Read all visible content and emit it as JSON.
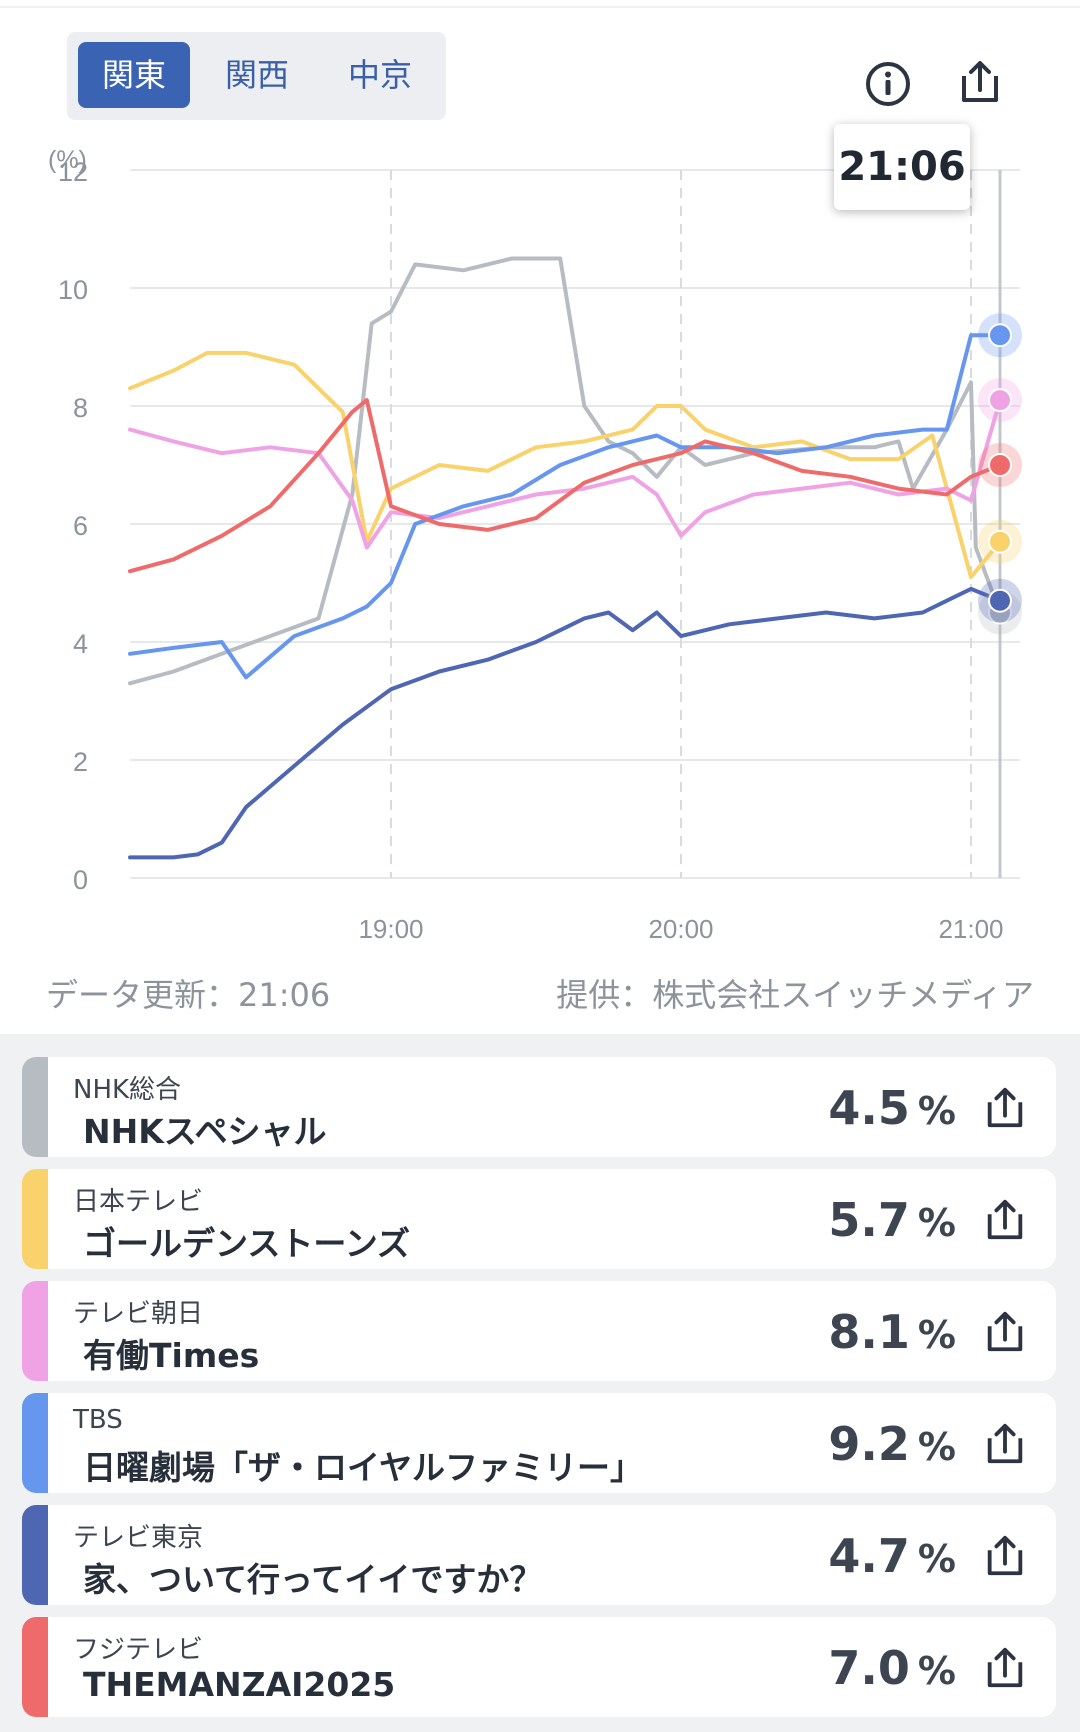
{
  "tabs": [
    {
      "label": "関東",
      "active": true
    },
    {
      "label": "関西",
      "active": false
    },
    {
      "label": "中京",
      "active": false
    }
  ],
  "icons": {
    "info": "info-icon",
    "share": "share-icon"
  },
  "tooltip": {
    "time": "21:06"
  },
  "chart_data": {
    "type": "line",
    "ylabel": "(%)",
    "ylim": [
      0,
      12
    ],
    "yticks": [
      "0",
      "2",
      "4",
      "6",
      "8",
      "10",
      "12"
    ],
    "xticks": [
      "19:00",
      "20:00",
      "21:00"
    ],
    "xlim": [
      "18:06",
      "21:06"
    ],
    "grid": true,
    "cursor_time": "21:06",
    "series": [
      {
        "name": "NHK総合",
        "color": "#b7bcc3",
        "points": [
          [
            "18:06",
            3.3
          ],
          [
            "18:15",
            3.5
          ],
          [
            "18:25",
            3.8
          ],
          [
            "18:35",
            4.1
          ],
          [
            "18:45",
            4.4
          ],
          [
            "18:52",
            6.5
          ],
          [
            "18:56",
            9.4
          ],
          [
            "19:00",
            9.6
          ],
          [
            "19:05",
            10.4
          ],
          [
            "19:15",
            10.3
          ],
          [
            "19:25",
            10.5
          ],
          [
            "19:35",
            10.5
          ],
          [
            "19:40",
            8.0
          ],
          [
            "19:45",
            7.4
          ],
          [
            "19:50",
            7.2
          ],
          [
            "19:55",
            6.8
          ],
          [
            "20:00",
            7.3
          ],
          [
            "20:05",
            7.0
          ],
          [
            "20:15",
            7.2
          ],
          [
            "20:30",
            7.3
          ],
          [
            "20:40",
            7.3
          ],
          [
            "20:45",
            7.4
          ],
          [
            "20:48",
            6.6
          ],
          [
            "20:55",
            7.6
          ],
          [
            "21:00",
            8.4
          ],
          [
            "21:01",
            5.6
          ],
          [
            "21:06",
            4.5
          ]
        ]
      },
      {
        "name": "日本テレビ",
        "color": "#f9d26c",
        "points": [
          [
            "18:06",
            8.3
          ],
          [
            "18:15",
            8.6
          ],
          [
            "18:22",
            8.9
          ],
          [
            "18:30",
            8.9
          ],
          [
            "18:40",
            8.7
          ],
          [
            "18:50",
            7.9
          ],
          [
            "18:55",
            5.7
          ],
          [
            "19:00",
            6.6
          ],
          [
            "19:10",
            7.0
          ],
          [
            "19:20",
            6.9
          ],
          [
            "19:30",
            7.3
          ],
          [
            "19:40",
            7.4
          ],
          [
            "19:50",
            7.6
          ],
          [
            "19:55",
            8.0
          ],
          [
            "20:00",
            8.0
          ],
          [
            "20:05",
            7.6
          ],
          [
            "20:15",
            7.3
          ],
          [
            "20:25",
            7.4
          ],
          [
            "20:35",
            7.1
          ],
          [
            "20:45",
            7.1
          ],
          [
            "20:52",
            7.5
          ],
          [
            "20:56",
            6.3
          ],
          [
            "21:00",
            5.1
          ],
          [
            "21:06",
            5.7
          ]
        ]
      },
      {
        "name": "テレビ朝日",
        "color": "#f0a3e4",
        "points": [
          [
            "18:06",
            7.6
          ],
          [
            "18:15",
            7.4
          ],
          [
            "18:25",
            7.2
          ],
          [
            "18:35",
            7.3
          ],
          [
            "18:45",
            7.2
          ],
          [
            "18:52",
            6.4
          ],
          [
            "18:55",
            5.6
          ],
          [
            "19:00",
            6.2
          ],
          [
            "19:10",
            6.1
          ],
          [
            "19:20",
            6.3
          ],
          [
            "19:30",
            6.5
          ],
          [
            "19:40",
            6.6
          ],
          [
            "19:50",
            6.8
          ],
          [
            "19:55",
            6.5
          ],
          [
            "20:00",
            5.8
          ],
          [
            "20:05",
            6.2
          ],
          [
            "20:15",
            6.5
          ],
          [
            "20:25",
            6.6
          ],
          [
            "20:35",
            6.7
          ],
          [
            "20:45",
            6.5
          ],
          [
            "20:55",
            6.6
          ],
          [
            "21:00",
            6.4
          ],
          [
            "21:06",
            8.1
          ]
        ]
      },
      {
        "name": "TBS",
        "color": "#6796ef",
        "points": [
          [
            "18:06",
            3.8
          ],
          [
            "18:15",
            3.9
          ],
          [
            "18:25",
            4.0
          ],
          [
            "18:30",
            3.4
          ],
          [
            "18:40",
            4.1
          ],
          [
            "18:50",
            4.4
          ],
          [
            "18:55",
            4.6
          ],
          [
            "19:00",
            5.0
          ],
          [
            "19:05",
            6.0
          ],
          [
            "19:15",
            6.3
          ],
          [
            "19:25",
            6.5
          ],
          [
            "19:35",
            7.0
          ],
          [
            "19:45",
            7.3
          ],
          [
            "19:55",
            7.5
          ],
          [
            "20:00",
            7.3
          ],
          [
            "20:10",
            7.3
          ],
          [
            "20:20",
            7.2
          ],
          [
            "20:30",
            7.3
          ],
          [
            "20:40",
            7.5
          ],
          [
            "20:50",
            7.6
          ],
          [
            "20:55",
            7.6
          ],
          [
            "21:00",
            9.2
          ],
          [
            "21:06",
            9.2
          ]
        ]
      },
      {
        "name": "テレビ東京",
        "color": "#4f66b3",
        "points": [
          [
            "18:06",
            0.35
          ],
          [
            "18:15",
            0.35
          ],
          [
            "18:20",
            0.4
          ],
          [
            "18:25",
            0.6
          ],
          [
            "18:30",
            1.2
          ],
          [
            "18:40",
            1.9
          ],
          [
            "18:50",
            2.6
          ],
          [
            "19:00",
            3.2
          ],
          [
            "19:10",
            3.5
          ],
          [
            "19:20",
            3.7
          ],
          [
            "19:30",
            4.0
          ],
          [
            "19:40",
            4.4
          ],
          [
            "19:45",
            4.5
          ],
          [
            "19:50",
            4.2
          ],
          [
            "19:55",
            4.5
          ],
          [
            "20:00",
            4.1
          ],
          [
            "20:10",
            4.3
          ],
          [
            "20:20",
            4.4
          ],
          [
            "20:30",
            4.5
          ],
          [
            "20:40",
            4.4
          ],
          [
            "20:50",
            4.5
          ],
          [
            "20:55",
            4.7
          ],
          [
            "21:00",
            4.9
          ],
          [
            "21:06",
            4.7
          ]
        ]
      },
      {
        "name": "フジテレビ",
        "color": "#ef6b6b",
        "points": [
          [
            "18:06",
            5.2
          ],
          [
            "18:15",
            5.4
          ],
          [
            "18:25",
            5.8
          ],
          [
            "18:35",
            6.3
          ],
          [
            "18:45",
            7.2
          ],
          [
            "18:52",
            7.9
          ],
          [
            "18:55",
            8.1
          ],
          [
            "19:00",
            6.3
          ],
          [
            "19:10",
            6.0
          ],
          [
            "19:20",
            5.9
          ],
          [
            "19:30",
            6.1
          ],
          [
            "19:40",
            6.7
          ],
          [
            "19:50",
            7.0
          ],
          [
            "20:00",
            7.2
          ],
          [
            "20:05",
            7.4
          ],
          [
            "20:15",
            7.2
          ],
          [
            "20:25",
            6.9
          ],
          [
            "20:35",
            6.8
          ],
          [
            "20:45",
            6.6
          ],
          [
            "20:55",
            6.5
          ],
          [
            "21:00",
            6.8
          ],
          [
            "21:06",
            7.0
          ]
        ]
      }
    ]
  },
  "footer": {
    "updated": "データ更新：21:06",
    "provider": "提供：株式会社スイッチメディア"
  },
  "list": [
    {
      "channel": "NHK総合",
      "program": "NHKスペシャル",
      "rating": "4.5",
      "unit": "%",
      "color": "#b7bcc3"
    },
    {
      "channel": "日本テレビ",
      "program": "ゴールデンストーンズ",
      "rating": "5.7",
      "unit": "%",
      "color": "#f9d26c"
    },
    {
      "channel": "テレビ朝日",
      "program": "有働Times",
      "rating": "8.1",
      "unit": "%",
      "color": "#f0a3e4"
    },
    {
      "channel": "TBS",
      "program": "日曜劇場「ザ・ロイヤルファミリー」",
      "rating": "9.2",
      "unit": "%",
      "color": "#6796ef"
    },
    {
      "channel": "テレビ東京",
      "program": "家、ついて行ってイイですか？",
      "rating": "4.7",
      "unit": "%",
      "color": "#4f66b3"
    },
    {
      "channel": "フジテレビ",
      "program": "THEMANZAI2025",
      "rating": "7.0",
      "unit": "%",
      "color": "#ef6b6b"
    }
  ]
}
